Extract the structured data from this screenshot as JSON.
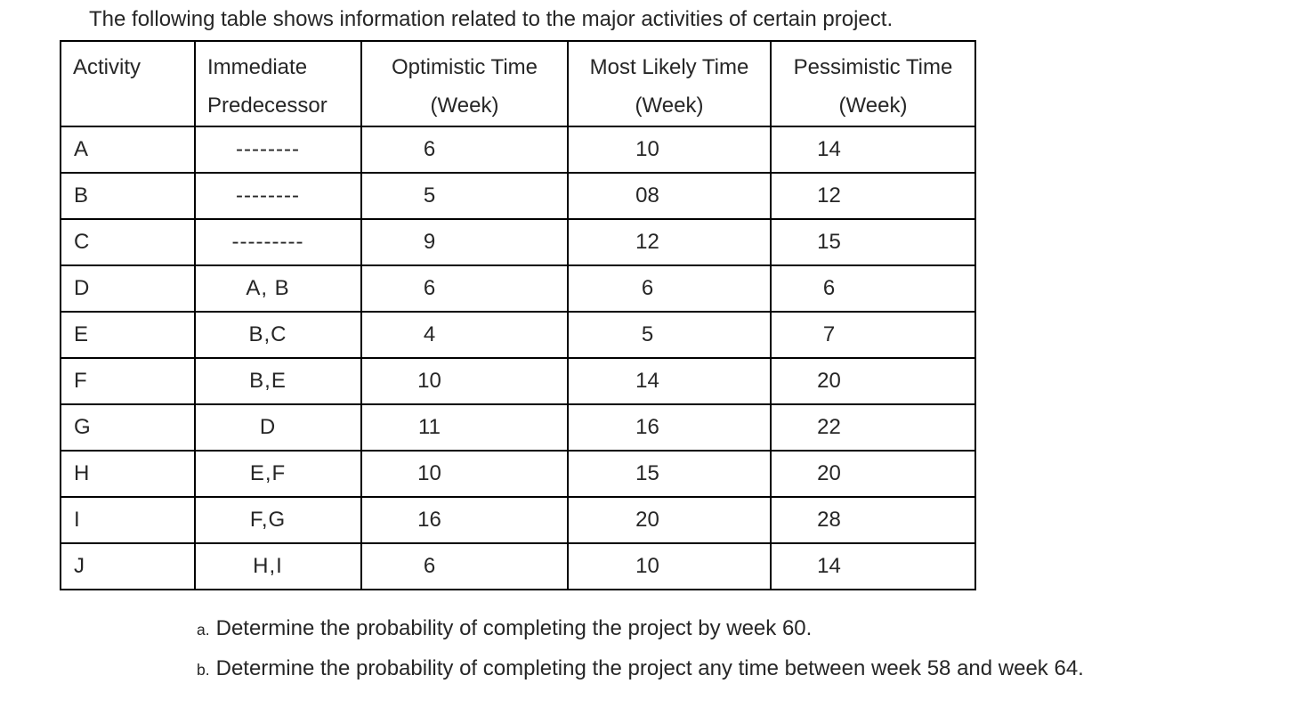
{
  "page": {
    "title": "The following table shows information related to the major activities of certain project."
  },
  "table": {
    "headers": [
      {
        "line1": "Activity",
        "line2": ""
      },
      {
        "line1": "Immediate",
        "line2": "Predecessor"
      },
      {
        "line1": "Optimistic Time",
        "line2": "(Week)"
      },
      {
        "line1": "Most Likely Time",
        "line2": "(Week)"
      },
      {
        "line1": "Pessimistic Time",
        "line2": "(Week)"
      }
    ],
    "rows": [
      {
        "activity": "A",
        "predecessor": "--------",
        "optimistic": "6",
        "most_likely": "10",
        "pessimistic": "14"
      },
      {
        "activity": "B",
        "predecessor": "--------",
        "optimistic": "5",
        "most_likely": "08",
        "pessimistic": "12"
      },
      {
        "activity": "C",
        "predecessor": "---------",
        "optimistic": "9",
        "most_likely": "12",
        "pessimistic": "15"
      },
      {
        "activity": "D",
        "predecessor": "A, B",
        "optimistic": "6",
        "most_likely": "6",
        "pessimistic": "6"
      },
      {
        "activity": "E",
        "predecessor": "B,C",
        "optimistic": "4",
        "most_likely": "5",
        "pessimistic": "7"
      },
      {
        "activity": "F",
        "predecessor": "B,E",
        "optimistic": "10",
        "most_likely": "14",
        "pessimistic": "20"
      },
      {
        "activity": "G",
        "predecessor": "D",
        "optimistic": "11",
        "most_likely": "16",
        "pessimistic": "22"
      },
      {
        "activity": "H",
        "predecessor": "E,F",
        "optimistic": "10",
        "most_likely": "15",
        "pessimistic": "20"
      },
      {
        "activity": "I",
        "predecessor": "F,G",
        "optimistic": "16",
        "most_likely": "20",
        "pessimistic": "28"
      },
      {
        "activity": "J",
        "predecessor": "H,I",
        "optimistic": "6",
        "most_likely": "10",
        "pessimistic": "14"
      }
    ]
  },
  "questions": [
    {
      "marker": "a.",
      "text": "Determine the probability of completing the project by week 60."
    },
    {
      "marker": "b.",
      "text": "Determine the probability of completing the project any time between week 58 and week 64."
    }
  ]
}
